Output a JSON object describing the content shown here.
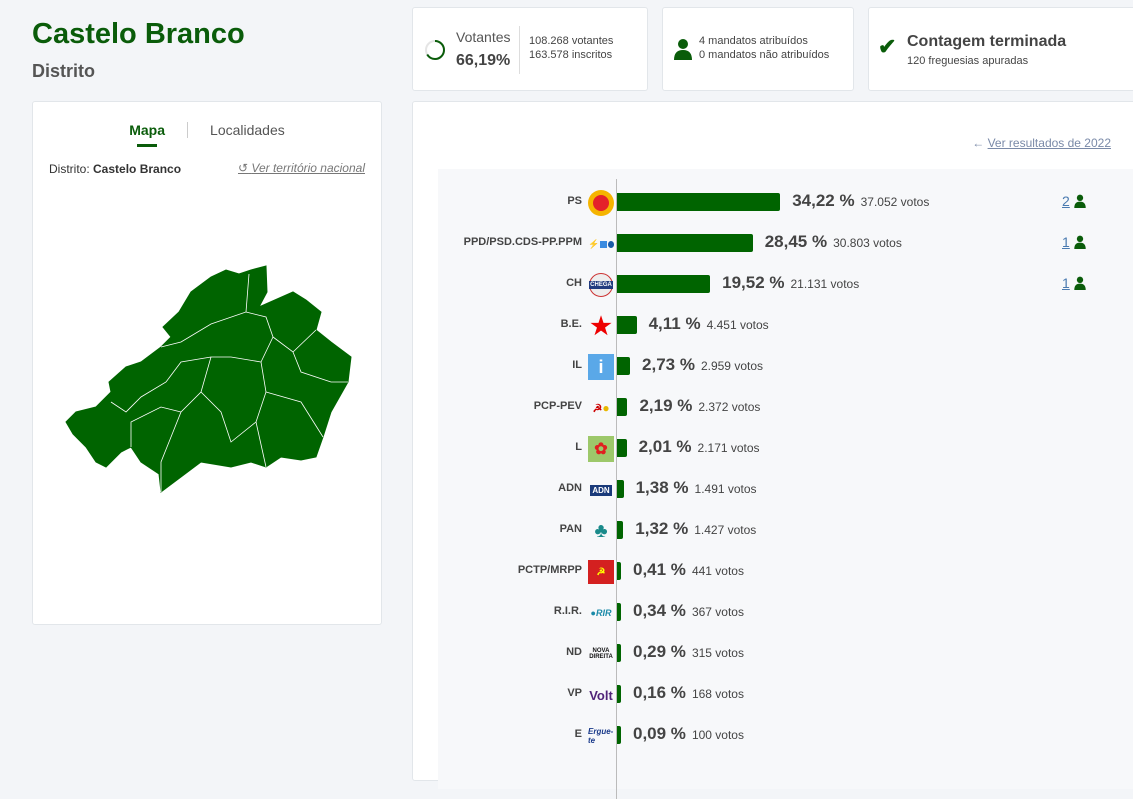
{
  "header": {
    "title": "Castelo Branco",
    "subtitle": "Distrito"
  },
  "map_panel": {
    "tabs": [
      {
        "label": "Mapa",
        "active": true
      },
      {
        "label": "Localidades",
        "active": false
      }
    ],
    "district_label": "Distrito:",
    "district_name": "Castelo Branco",
    "national_link": "Ver território nacional",
    "map_color": "#006400"
  },
  "stats": {
    "turnout_label": "Votantes",
    "turnout_pct": "66,19%",
    "turnout_value": 66.19,
    "voters": "108.268 votantes",
    "registered": "163.578 inscritos",
    "seats_assigned": "4 mandatos atribuídos",
    "seats_unassigned": "0 mandatos não atribuídos",
    "status": "Contagem terminada",
    "parishes": "120 freguesias apuradas"
  },
  "results": {
    "back_link": "Ver resultados de 2022",
    "bar_color": "#006400",
    "parties": [
      {
        "name": "PS",
        "pct_label": "34,22 %",
        "pct": 34.22,
        "votes": "37.052 votos",
        "seats": "2",
        "logo": "ps-fist-logo"
      },
      {
        "name": "PPD/PSD.CDS-PP.PPM",
        "pct_label": "28,45 %",
        "pct": 28.45,
        "votes": "30.803 votos",
        "seats": "1",
        "logo": "ad-logo"
      },
      {
        "name": "CH",
        "pct_label": "19,52 %",
        "pct": 19.52,
        "votes": "21.131 votos",
        "seats": "1",
        "logo": "chega-logo"
      },
      {
        "name": "B.E.",
        "pct_label": "4,11 %",
        "pct": 4.11,
        "votes": "4.451 votos",
        "logo": "be-star-logo"
      },
      {
        "name": "IL",
        "pct_label": "2,73 %",
        "pct": 2.73,
        "votes": "2.959 votos",
        "logo": "il-logo"
      },
      {
        "name": "PCP-PEV",
        "pct_label": "2,19 %",
        "pct": 2.19,
        "votes": "2.372 votos",
        "logo": "cdu-logo"
      },
      {
        "name": "L",
        "pct_label": "2,01 %",
        "pct": 2.01,
        "votes": "2.171 votos",
        "logo": "livre-logo"
      },
      {
        "name": "ADN",
        "pct_label": "1,38 %",
        "pct": 1.38,
        "votes": "1.491 votos",
        "logo": "adn-logo"
      },
      {
        "name": "PAN",
        "pct_label": "1,32 %",
        "pct": 1.32,
        "votes": "1.427 votos",
        "logo": "pan-tree-logo"
      },
      {
        "name": "PCTP/MRPP",
        "pct_label": "0,41 %",
        "pct": 0.41,
        "votes": "441 votos",
        "logo": "pctp-logo"
      },
      {
        "name": "R.I.R.",
        "pct_label": "0,34 %",
        "pct": 0.34,
        "votes": "367 votos",
        "logo": "rir-logo"
      },
      {
        "name": "ND",
        "pct_label": "0,29 %",
        "pct": 0.29,
        "votes": "315 votos",
        "logo": "nd-logo"
      },
      {
        "name": "VP",
        "pct_label": "0,16 %",
        "pct": 0.16,
        "votes": "168 votos",
        "logo": "volt-logo"
      },
      {
        "name": "E",
        "pct_label": "0,09 %",
        "pct": 0.09,
        "votes": "100 votos",
        "logo": "ergue-te-logo"
      }
    ]
  }
}
